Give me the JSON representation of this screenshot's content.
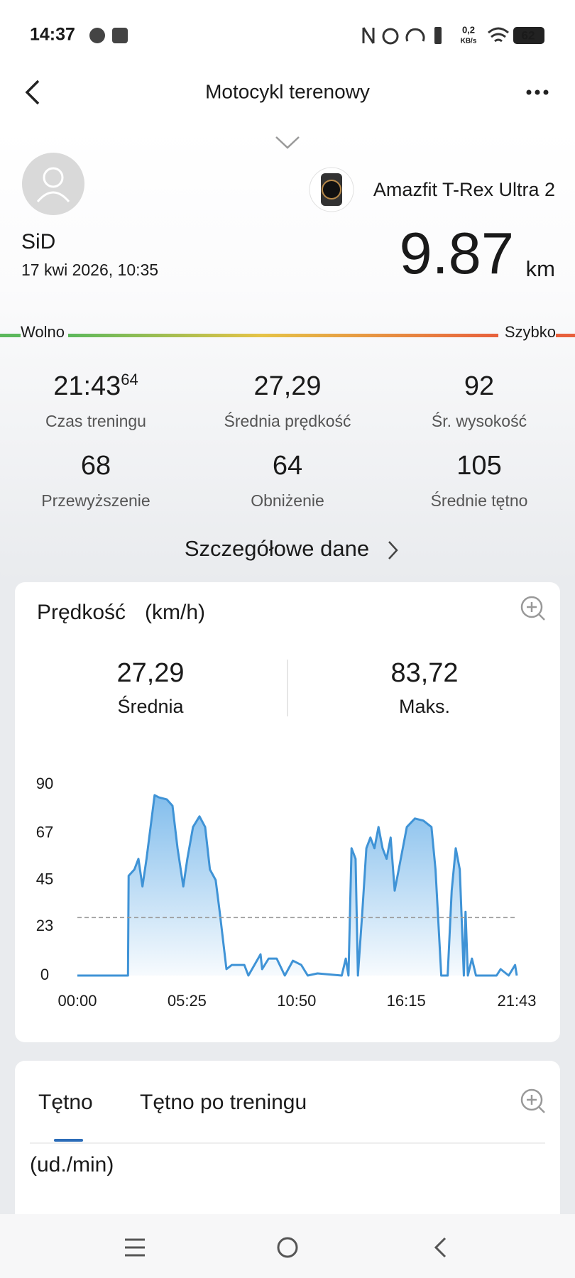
{
  "status_bar": {
    "time": "14:37",
    "network_speed": "0,2",
    "network_unit": "KB/s",
    "battery": "62"
  },
  "header": {
    "title": "Motocykl terenowy"
  },
  "profile": {
    "name": "SiD",
    "date": "17 kwi 2026, 10:35",
    "device": "Amazfit T-Rex Ultra 2",
    "distance": "9.87",
    "distance_unit": "km"
  },
  "pace_scale": {
    "slow": "Wolno",
    "fast": "Szybko"
  },
  "stats": [
    {
      "value": "21:43",
      "value_sup": "64",
      "label": "Czas treningu"
    },
    {
      "value": "27,29",
      "label": "Średnia prędkość"
    },
    {
      "value": "92",
      "label": "Śr. wysokość"
    },
    {
      "value": "68",
      "label": "Przewyższenie"
    },
    {
      "value": "64",
      "label": "Obniżenie"
    },
    {
      "value": "105",
      "label": "Średnie tętno"
    }
  ],
  "details_link": "Szczegółowe dane",
  "chart_data": {
    "type": "line",
    "title": "Prędkość",
    "unit": "(km/h)",
    "summary": [
      {
        "value": "27,29",
        "label": "Średnia"
      },
      {
        "value": "83,72",
        "label": "Maks."
      }
    ],
    "x": [
      0,
      150,
      152,
      169,
      181,
      193,
      205,
      217,
      229,
      241,
      265,
      282,
      297,
      314,
      326,
      343,
      362,
      379,
      393,
      410,
      422,
      442,
      458,
      495,
      507,
      543,
      548,
      567,
      591,
      615,
      639,
      664,
      683,
      712,
      784,
      796,
      804,
      813,
      825,
      832,
      845,
      857,
      869,
      881,
      893,
      905,
      917,
      929,
      941,
      953,
      977,
      1001,
      1026,
      1050,
      1062,
      1079,
      1098,
      1110,
      1122,
      1134,
      1146,
      1151,
      1158,
      1170,
      1182,
      1243,
      1255,
      1279,
      1298,
      1303
    ],
    "values": [
      0,
      0,
      47,
      50,
      55,
      42,
      55,
      70,
      85,
      84,
      83,
      80,
      60,
      42,
      55,
      70,
      75,
      70,
      50,
      45,
      30,
      3,
      5,
      5,
      0,
      10,
      3,
      8,
      8,
      0,
      7,
      5,
      0,
      1,
      0,
      8,
      0,
      60,
      55,
      0,
      30,
      60,
      65,
      60,
      70,
      60,
      55,
      65,
      40,
      50,
      70,
      74,
      73,
      70,
      50,
      0,
      0,
      40,
      60,
      50,
      0,
      30,
      0,
      8,
      0,
      0,
      3,
      0,
      5,
      0
    ],
    "color": "#3f93d6",
    "average_line": 27.29,
    "xlim": [
      0,
      1303
    ],
    "xticks": [
      {
        "value": 0,
        "label": "00:00"
      },
      {
        "value": 325,
        "label": "05:25"
      },
      {
        "value": 650,
        "label": "10:50"
      },
      {
        "value": 975,
        "label": "16:15"
      },
      {
        "value": 1303,
        "label": "21:43"
      }
    ],
    "ylim": [
      0,
      90
    ],
    "yticks": [
      0,
      23,
      45,
      67,
      90
    ]
  },
  "heart_rate": {
    "tabs": [
      "Tętno",
      "Tętno po treningu"
    ],
    "unit": "(ud./min)"
  }
}
